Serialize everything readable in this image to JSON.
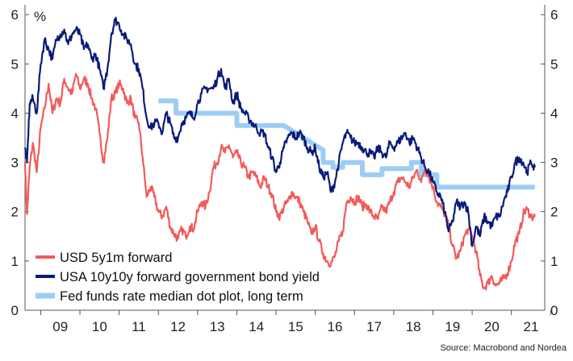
{
  "chart_data": {
    "type": "line",
    "unit_label": "%",
    "source": "Source: Macrobond and Nordea",
    "y_ticks": [
      "0",
      "1",
      "2",
      "3",
      "4",
      "5",
      "6"
    ],
    "x_ticks": [
      "09",
      "10",
      "11",
      "12",
      "13",
      "14",
      "15",
      "16",
      "17",
      "18",
      "19",
      "20",
      "21"
    ],
    "ylim": [
      0,
      6.2
    ],
    "xlim": [
      2008.6,
      2021.85
    ],
    "grid": false,
    "legend_position": "bottom-left",
    "colors": {
      "usd": "#f25a5a",
      "usa": "#0a1a7a",
      "fed": "#9ccdf5"
    },
    "series": [
      {
        "name": "USD 5y1m forward",
        "x": [
          2008.6,
          2008.65,
          2008.72,
          2008.8,
          2008.9,
          2009.0,
          2009.1,
          2009.2,
          2009.3,
          2009.4,
          2009.5,
          2009.6,
          2009.7,
          2009.8,
          2009.9,
          2010.0,
          2010.1,
          2010.2,
          2010.3,
          2010.4,
          2010.5,
          2010.6,
          2010.7,
          2010.8,
          2010.9,
          2011.0,
          2011.1,
          2011.2,
          2011.3,
          2011.4,
          2011.5,
          2011.6,
          2011.7,
          2011.8,
          2011.9,
          2012.0,
          2012.1,
          2012.2,
          2012.3,
          2012.4,
          2012.5,
          2012.6,
          2012.7,
          2012.8,
          2012.9,
          2013.0,
          2013.1,
          2013.2,
          2013.3,
          2013.4,
          2013.5,
          2013.6,
          2013.7,
          2013.8,
          2013.9,
          2014.0,
          2014.1,
          2014.2,
          2014.3,
          2014.4,
          2014.5,
          2014.6,
          2014.7,
          2014.8,
          2014.9,
          2015.0,
          2015.1,
          2015.2,
          2015.3,
          2015.4,
          2015.5,
          2015.6,
          2015.7,
          2015.8,
          2015.9,
          2016.0,
          2016.1,
          2016.2,
          2016.3,
          2016.4,
          2016.5,
          2016.6,
          2016.7,
          2016.8,
          2016.9,
          2017.0,
          2017.1,
          2017.2,
          2017.3,
          2017.4,
          2017.5,
          2017.6,
          2017.7,
          2017.8,
          2017.9,
          2018.0,
          2018.1,
          2018.2,
          2018.3,
          2018.4,
          2018.5,
          2018.6,
          2018.7,
          2018.8,
          2018.9,
          2019.0,
          2019.1,
          2019.2,
          2019.3,
          2019.4,
          2019.5,
          2019.6,
          2019.7,
          2019.8,
          2019.9,
          2020.0,
          2020.1,
          2020.2,
          2020.3,
          2020.4,
          2020.5,
          2020.6,
          2020.7,
          2020.8,
          2020.9,
          2021.0,
          2021.1,
          2021.2,
          2021.3,
          2021.4,
          2021.5,
          2021.6
        ],
        "values": [
          3.0,
          1.95,
          2.9,
          3.4,
          2.8,
          3.7,
          4.1,
          4.6,
          4.0,
          4.3,
          4.2,
          4.7,
          4.5,
          4.4,
          4.8,
          4.5,
          4.7,
          4.6,
          4.3,
          4.1,
          3.6,
          3.0,
          3.5,
          4.3,
          4.4,
          4.6,
          4.5,
          4.2,
          4.3,
          3.9,
          3.8,
          3.1,
          2.3,
          2.5,
          2.3,
          2.0,
          1.9,
          2.1,
          1.7,
          1.55,
          1.45,
          1.65,
          1.5,
          1.7,
          1.65,
          2.0,
          2.2,
          2.1,
          2.4,
          2.9,
          3.0,
          3.3,
          3.2,
          3.35,
          3.1,
          3.2,
          3.0,
          2.9,
          2.7,
          2.8,
          2.7,
          2.5,
          2.7,
          2.5,
          2.35,
          2.0,
          1.9,
          2.1,
          2.2,
          2.4,
          2.3,
          2.2,
          2.0,
          1.8,
          1.55,
          1.7,
          1.4,
          1.15,
          1.0,
          0.95,
          1.1,
          1.4,
          1.6,
          2.2,
          2.3,
          2.2,
          2.3,
          2.1,
          2.15,
          2.0,
          1.9,
          1.85,
          2.1,
          2.0,
          2.2,
          2.4,
          2.6,
          2.7,
          2.6,
          2.5,
          2.7,
          2.85,
          2.6,
          2.9,
          2.7,
          2.5,
          2.2,
          2.1,
          1.95,
          1.7,
          1.3,
          1.05,
          1.2,
          1.5,
          1.65,
          1.5,
          1.2,
          0.7,
          0.45,
          0.55,
          0.7,
          0.5,
          0.55,
          0.65,
          0.75,
          1.0,
          1.4,
          1.55,
          1.95,
          2.05,
          1.9,
          1.9
        ]
      },
      {
        "name": "USA 10y10y forward government bond yield",
        "x": [
          2008.6,
          2008.65,
          2008.72,
          2008.8,
          2008.9,
          2009.0,
          2009.1,
          2009.2,
          2009.3,
          2009.4,
          2009.5,
          2009.6,
          2009.7,
          2009.8,
          2009.9,
          2010.0,
          2010.1,
          2010.2,
          2010.3,
          2010.4,
          2010.5,
          2010.6,
          2010.7,
          2010.8,
          2010.9,
          2011.0,
          2011.1,
          2011.2,
          2011.3,
          2011.4,
          2011.5,
          2011.6,
          2011.7,
          2011.8,
          2011.9,
          2012.0,
          2012.1,
          2012.2,
          2012.3,
          2012.4,
          2012.5,
          2012.6,
          2012.7,
          2012.8,
          2012.9,
          2013.0,
          2013.1,
          2013.2,
          2013.3,
          2013.4,
          2013.5,
          2013.6,
          2013.7,
          2013.8,
          2013.9,
          2014.0,
          2014.1,
          2014.2,
          2014.3,
          2014.4,
          2014.5,
          2014.6,
          2014.7,
          2014.8,
          2014.9,
          2015.0,
          2015.1,
          2015.2,
          2015.3,
          2015.4,
          2015.5,
          2015.6,
          2015.7,
          2015.8,
          2015.9,
          2016.0,
          2016.1,
          2016.2,
          2016.3,
          2016.4,
          2016.5,
          2016.6,
          2016.7,
          2016.8,
          2016.9,
          2017.0,
          2017.1,
          2017.2,
          2017.3,
          2017.4,
          2017.5,
          2017.6,
          2017.7,
          2017.8,
          2017.9,
          2018.0,
          2018.1,
          2018.2,
          2018.3,
          2018.4,
          2018.5,
          2018.6,
          2018.7,
          2018.8,
          2018.9,
          2019.0,
          2019.1,
          2019.2,
          2019.3,
          2019.4,
          2019.5,
          2019.6,
          2019.7,
          2019.8,
          2019.9,
          2020.0,
          2020.1,
          2020.2,
          2020.3,
          2020.4,
          2020.5,
          2020.6,
          2020.7,
          2020.8,
          2020.9,
          2021.0,
          2021.1,
          2021.2,
          2021.3,
          2021.4,
          2021.5,
          2021.6
        ],
        "values": [
          3.3,
          3.0,
          4.2,
          4.3,
          4.0,
          5.0,
          5.5,
          5.3,
          5.1,
          5.5,
          5.6,
          5.7,
          5.4,
          5.6,
          5.7,
          5.6,
          5.3,
          5.4,
          5.1,
          5.2,
          4.9,
          4.5,
          4.9,
          5.6,
          5.9,
          5.8,
          5.6,
          5.5,
          5.4,
          5.0,
          4.9,
          4.5,
          3.9,
          3.7,
          3.8,
          3.8,
          3.6,
          4.0,
          3.8,
          3.5,
          3.5,
          3.8,
          3.9,
          4.0,
          3.9,
          4.2,
          4.4,
          4.5,
          4.5,
          4.5,
          4.7,
          4.9,
          4.5,
          4.7,
          4.2,
          4.4,
          4.1,
          4.0,
          3.9,
          3.8,
          3.7,
          3.6,
          3.6,
          3.3,
          3.1,
          2.8,
          3.0,
          3.3,
          3.5,
          3.6,
          3.5,
          3.6,
          3.5,
          3.3,
          3.2,
          3.3,
          2.9,
          2.7,
          2.8,
          2.4,
          2.6,
          3.0,
          3.4,
          3.6,
          3.5,
          3.4,
          3.4,
          3.3,
          3.2,
          3.2,
          3.1,
          3.3,
          3.2,
          3.1,
          3.4,
          3.3,
          3.4,
          3.5,
          3.6,
          3.4,
          3.5,
          3.3,
          3.1,
          2.9,
          2.8,
          2.6,
          2.4,
          2.3,
          2.0,
          1.6,
          1.8,
          2.2,
          2.1,
          2.2,
          2.0,
          1.3,
          1.7,
          1.5,
          1.9,
          1.8,
          1.7,
          1.9,
          1.9,
          2.2,
          2.4,
          2.7,
          3.0,
          3.1,
          3.0,
          2.8,
          3.0,
          2.9
        ]
      },
      {
        "name": "Fed funds rate median dot plot, long term",
        "x": [
          2012.0,
          2012.15,
          2012.15,
          2012.45,
          2012.45,
          2014.0,
          2014.0,
          2015.2,
          2015.2,
          2015.7,
          2015.7,
          2016.2,
          2016.2,
          2016.45,
          2016.45,
          2016.7,
          2016.7,
          2017.2,
          2017.2,
          2017.7,
          2017.7,
          2018.45,
          2018.45,
          2018.7,
          2018.7,
          2019.1,
          2019.1,
          2019.7,
          2019.7,
          2021.6
        ],
        "values": [
          4.25,
          4.25,
          4.25,
          4.25,
          4.0,
          4.0,
          3.75,
          3.75,
          3.75,
          3.5,
          3.5,
          3.25,
          3.0,
          3.0,
          2.9,
          2.9,
          3.0,
          3.0,
          2.75,
          2.75,
          2.875,
          2.875,
          3.0,
          3.0,
          2.75,
          2.75,
          2.5,
          2.5,
          2.5,
          2.5
        ]
      }
    ]
  }
}
